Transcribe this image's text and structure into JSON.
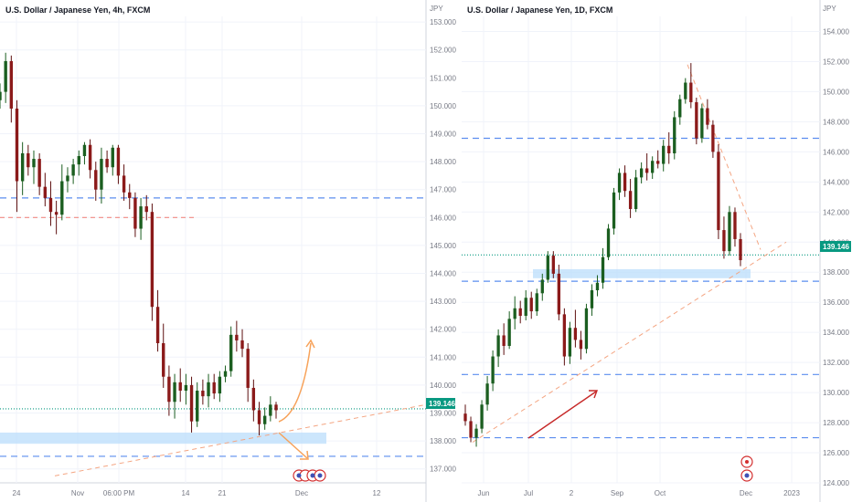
{
  "chart_data": [
    {
      "type": "candlestick",
      "title": "U.S. Dollar / Japanese Yen, 4h, FXCM",
      "currency": "JPY",
      "last_price": "139.146",
      "ylim": [
        136.5,
        153.2
      ],
      "y_ticks": [
        "153.000",
        "152.000",
        "151.000",
        "150.000",
        "149.000",
        "148.000",
        "147.000",
        "146.000",
        "145.000",
        "144.000",
        "143.000",
        "142.000",
        "141.000",
        "140.000",
        "139.000",
        "138.000",
        "137.000"
      ],
      "x_ticks": [
        "24",
        "Nov",
        "06:00 PM",
        "14",
        "21",
        "Dec",
        "12"
      ],
      "series": [
        {
          "values": [
            [
              150.2,
              150.8,
              149.9,
              150.5
            ],
            [
              150.5,
              151.9,
              150.1,
              151.6
            ],
            [
              151.6,
              151.8,
              149.4,
              149.9
            ],
            [
              149.9,
              150.2,
              146.2,
              147.3
            ],
            [
              147.3,
              148.7,
              146.8,
              148.3
            ],
            [
              148.3,
              148.6,
              147.5,
              147.8
            ],
            [
              147.8,
              148.4,
              147.2,
              148.1
            ],
            [
              148.1,
              148.3,
              146.8,
              147.1
            ],
            [
              147.1,
              147.6,
              146.4,
              146.7
            ],
            [
              146.7,
              147.3,
              145.7,
              146.2
            ],
            [
              146.2,
              146.6,
              145.4,
              146.1
            ],
            [
              146.1,
              147.9,
              145.9,
              147.3
            ],
            [
              147.3,
              147.8,
              146.9,
              147.5
            ],
            [
              147.5,
              148.1,
              147.2,
              147.9
            ],
            [
              147.9,
              148.4,
              147.5,
              148.2
            ],
            [
              148.2,
              148.7,
              147.9,
              148.6
            ],
            [
              148.6,
              148.8,
              147.4,
              147.7
            ],
            [
              147.7,
              148.0,
              146.6,
              147.0
            ],
            [
              147.0,
              148.5,
              146.5,
              148.1
            ],
            [
              148.1,
              148.4,
              147.6,
              147.8
            ],
            [
              147.8,
              148.6,
              147.5,
              148.5
            ],
            [
              148.5,
              148.6,
              147.2,
              147.5
            ],
            [
              147.5,
              147.9,
              146.6,
              146.9
            ],
            [
              146.9,
              147.2,
              146.3,
              146.7
            ],
            [
              146.7,
              146.9,
              145.3,
              145.6
            ],
            [
              145.6,
              146.7,
              145.2,
              146.4
            ],
            [
              146.4,
              146.8,
              145.9,
              146.2
            ],
            [
              146.2,
              146.5,
              142.3,
              142.8
            ],
            [
              142.8,
              143.4,
              141.2,
              141.5
            ],
            [
              141.5,
              142.2,
              139.9,
              140.3
            ],
            [
              140.3,
              140.7,
              138.9,
              139.4
            ],
            [
              139.4,
              140.4,
              138.8,
              140.1
            ],
            [
              140.1,
              140.6,
              139.4,
              139.8
            ],
            [
              139.8,
              140.4,
              139.3,
              140.0
            ],
            [
              140.0,
              140.3,
              138.3,
              138.7
            ],
            [
              138.7,
              140.1,
              138.5,
              139.8
            ],
            [
              139.8,
              140.2,
              139.3,
              139.6
            ],
            [
              139.6,
              140.4,
              139.2,
              140.1
            ],
            [
              140.1,
              140.4,
              139.5,
              139.7
            ],
            [
              139.7,
              140.5,
              139.4,
              140.3
            ],
            [
              140.3,
              140.7,
              140.1,
              140.5
            ],
            [
              140.5,
              142.1,
              140.3,
              141.8
            ],
            [
              141.8,
              142.3,
              141.2,
              141.6
            ],
            [
              141.6,
              142.0,
              141.0,
              141.3
            ],
            [
              141.3,
              141.5,
              139.4,
              139.9
            ],
            [
              139.9,
              140.2,
              138.7,
              139.1
            ],
            [
              139.1,
              139.4,
              138.2,
              138.6
            ],
            [
              138.6,
              139.2,
              138.4,
              138.9
            ],
            [
              138.9,
              139.6,
              138.7,
              139.3
            ],
            [
              139.3,
              139.4,
              138.8,
              139.1
            ]
          ]
        }
      ],
      "annotations": {
        "resistance_level": 146.7,
        "support_level": 137.45,
        "support_zone": [
          137.9,
          138.3
        ],
        "short_level": 146.0,
        "price_line": 139.15
      }
    },
    {
      "type": "candlestick",
      "title": "U.S. Dollar / Japanese Yen, 1D, FXCM",
      "currency": "JPY",
      "last_price": "139.146",
      "ylim": [
        124.0,
        155.0
      ],
      "y_ticks": [
        "154.000",
        "152.000",
        "150.000",
        "148.000",
        "146.000",
        "144.000",
        "142.000",
        "140.000",
        "138.000",
        "136.000",
        "134.000",
        "132.000",
        "130.000",
        "128.000",
        "126.000",
        "124.000"
      ],
      "x_ticks": [
        "Jun",
        "Jul",
        "2",
        "Sep",
        "Oct",
        "Dec",
        "2023"
      ],
      "series": [
        {
          "values": [
            [
              128.6,
              129.2,
              127.8,
              128.1
            ],
            [
              128.1,
              128.4,
              126.7,
              127.0
            ],
            [
              127.0,
              127.9,
              126.4,
              127.6
            ],
            [
              127.6,
              129.5,
              127.3,
              129.2
            ],
            [
              129.2,
              131.1,
              128.8,
              130.6
            ],
            [
              130.6,
              132.8,
              130.1,
              132.4
            ],
            [
              132.4,
              134.2,
              131.7,
              133.8
            ],
            [
              133.8,
              134.6,
              132.5,
              133.1
            ],
            [
              133.1,
              135.4,
              132.9,
              134.9
            ],
            [
              134.9,
              136.4,
              134.2,
              135.6
            ],
            [
              135.6,
              136.1,
              134.6,
              135.1
            ],
            [
              135.1,
              136.8,
              134.8,
              136.3
            ],
            [
              136.3,
              136.7,
              134.9,
              135.4
            ],
            [
              135.4,
              136.9,
              135.1,
              136.6
            ],
            [
              136.6,
              137.9,
              136.1,
              137.5
            ],
            [
              137.5,
              139.4,
              137.3,
              139.1
            ],
            [
              139.1,
              139.4,
              137.6,
              137.9
            ],
            [
              137.9,
              138.5,
              134.8,
              135.2
            ],
            [
              135.2,
              135.6,
              131.8,
              132.4
            ],
            [
              132.4,
              134.7,
              131.9,
              134.3
            ],
            [
              134.3,
              135.5,
              133.0,
              133.5
            ],
            [
              133.5,
              134.1,
              132.2,
              132.9
            ],
            [
              132.9,
              135.9,
              132.6,
              135.6
            ],
            [
              135.6,
              137.2,
              135.1,
              136.8
            ],
            [
              136.8,
              137.8,
              136.4,
              137.3
            ],
            [
              137.3,
              139.6,
              136.9,
              139.0
            ],
            [
              139.0,
              141.2,
              138.8,
              140.9
            ],
            [
              140.9,
              143.6,
              140.5,
              143.3
            ],
            [
              143.3,
              144.9,
              142.8,
              144.6
            ],
            [
              144.6,
              145.1,
              143.0,
              143.4
            ],
            [
              143.4,
              144.2,
              141.6,
              142.2
            ],
            [
              142.2,
              144.8,
              142.0,
              144.3
            ],
            [
              144.3,
              145.3,
              143.9,
              144.9
            ],
            [
              144.9,
              145.9,
              144.1,
              144.6
            ],
            [
              144.6,
              145.7,
              144.2,
              145.4
            ],
            [
              145.4,
              146.1,
              144.9,
              145.2
            ],
            [
              145.2,
              146.8,
              144.7,
              146.4
            ],
            [
              146.4,
              147.3,
              145.2,
              145.9
            ],
            [
              145.9,
              148.7,
              145.5,
              148.3
            ],
            [
              148.3,
              149.8,
              147.8,
              149.5
            ],
            [
              149.5,
              150.9,
              149.2,
              150.6
            ],
            [
              150.6,
              151.9,
              148.9,
              149.3
            ],
            [
              149.3,
              149.6,
              146.5,
              146.9
            ],
            [
              146.9,
              149.2,
              146.6,
              148.9
            ],
            [
              148.9,
              149.5,
              147.5,
              147.8
            ],
            [
              147.8,
              148.1,
              145.6,
              146.0
            ],
            [
              146.0,
              146.5,
              140.2,
              140.8
            ],
            [
              140.8,
              141.7,
              138.9,
              139.4
            ],
            [
              139.4,
              142.4,
              139.1,
              142.0
            ],
            [
              142.0,
              142.3,
              139.7,
              140.2
            ],
            [
              140.2,
              140.6,
              138.4,
              138.8
            ]
          ]
        }
      ],
      "annotations": {
        "resistance_level": 146.9,
        "support_level": 137.4,
        "support_zone": [
          137.6,
          138.2
        ],
        "lower_level_1": 131.2,
        "lower_level_2": 127.0,
        "price_line": 139.146
      }
    }
  ]
}
